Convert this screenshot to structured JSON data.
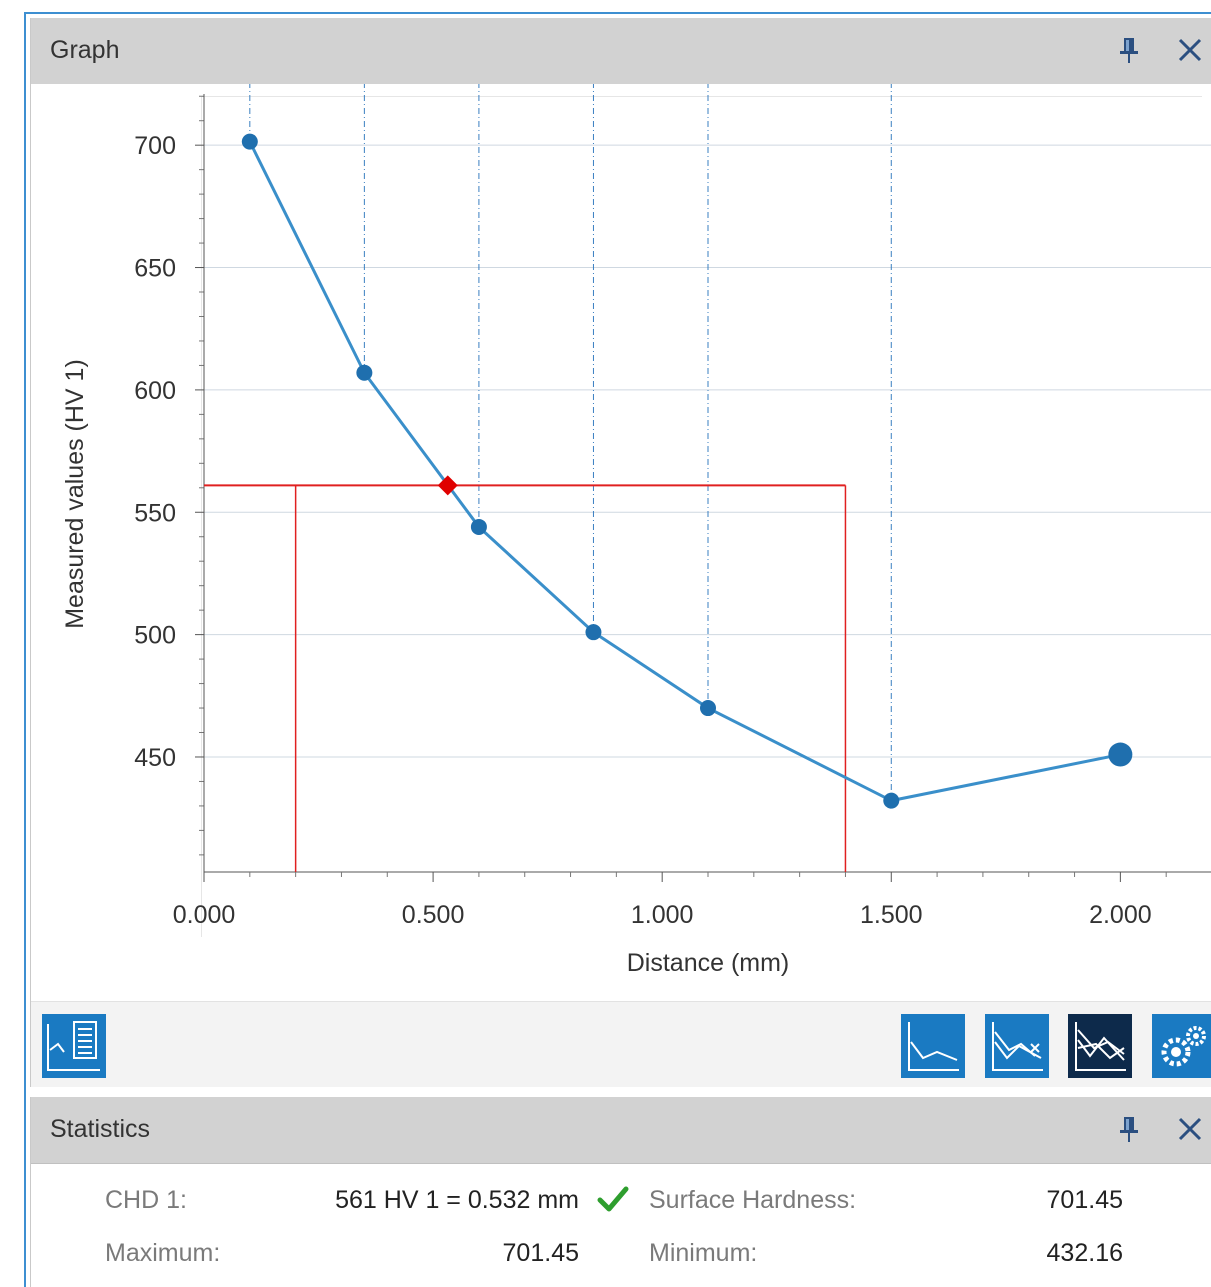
{
  "graph_panel": {
    "title": "Graph",
    "pin_icon": "pin-icon",
    "close_icon": "close-icon"
  },
  "statistics_panel": {
    "title": "Statistics",
    "pin_icon": "pin-icon",
    "close_icon": "close-icon",
    "rows": [
      {
        "label": "CHD 1:",
        "value": "561 HV 1 = 0.532 mm",
        "status_icon": "checkmark-icon",
        "label2": "Surface Hardness:",
        "value2": "701.45"
      },
      {
        "label": "Maximum:",
        "value": "701.45",
        "label2": "Minimum:",
        "value2": "432.16"
      }
    ]
  },
  "toolbar": {
    "left_buttons": [
      "table-chart-icon"
    ],
    "right_buttons": [
      "single-curve-icon",
      "overlay-curves-icon",
      "all-curves-icon",
      "settings-gears-icon"
    ],
    "active_button": "all-curves-icon"
  },
  "colors": {
    "series": "#3a8fca",
    "point": "#1f6fae",
    "threshold": "#e02020",
    "marker": "#e00000",
    "grid": "#cfd8e1",
    "header": "#d2d2d2",
    "button": "#1a7ac2",
    "button_active": "#0d2a4b",
    "check": "#2e9e2e"
  },
  "chart_data": {
    "type": "line",
    "xlabel": "Distance (mm)",
    "ylabel": "Measured values (HV 1)",
    "xlim": [
      0,
      2.2
    ],
    "ylim": [
      403,
      725
    ],
    "x_ticks": [
      "0.000",
      "0.500",
      "1.000",
      "1.500",
      "2.000"
    ],
    "x_tick_values": [
      0,
      0.5,
      1.0,
      1.5,
      2.0
    ],
    "y_ticks": [
      "700",
      "650",
      "600",
      "550",
      "500",
      "450"
    ],
    "y_tick_values": [
      700,
      650,
      600,
      550,
      500,
      450
    ],
    "grid": true,
    "series": [
      {
        "x": [
          0.1,
          0.35,
          0.6,
          0.85,
          1.1,
          1.5,
          2.0
        ],
        "y": [
          701.45,
          607,
          544,
          501,
          470,
          432.16,
          451
        ]
      }
    ],
    "highlighted_point": {
      "x": 2.0,
      "y": 451
    },
    "threshold": {
      "hardness": 561,
      "distance": 0.532,
      "x_range": [
        0.2,
        1.4
      ]
    }
  }
}
